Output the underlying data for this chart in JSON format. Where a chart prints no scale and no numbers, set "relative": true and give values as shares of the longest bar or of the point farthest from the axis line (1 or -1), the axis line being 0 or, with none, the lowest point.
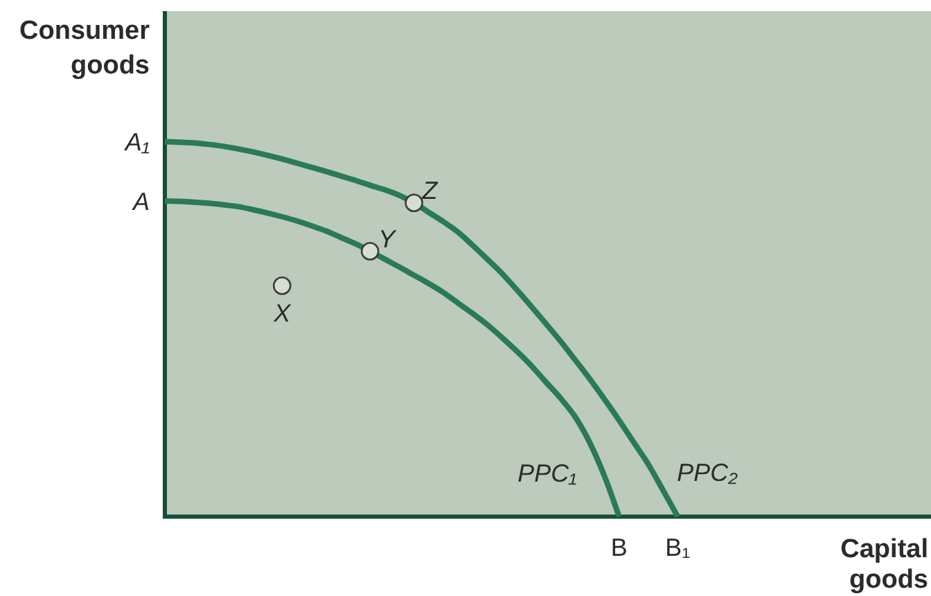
{
  "chart_data": {
    "type": "line",
    "relative": true,
    "xlabel": "Capital goods",
    "ylabel": "Consumer goods",
    "categories": [
      null,
      null,
      null,
      null,
      null,
      null,
      null,
      null,
      null,
      null,
      null,
      null,
      null,
      null,
      null,
      null,
      null,
      null,
      null,
      null,
      null,
      null,
      null,
      null,
      null,
      null,
      null,
      null,
      null,
      null,
      null,
      "B",
      null,
      null,
      null,
      "B₁",
      null,
      null,
      null,
      null,
      null,
      null,
      null,
      null,
      null,
      null,
      null,
      null,
      null,
      null,
      null,
      null,
      null
    ],
    "annotations": [
      "A",
      "A₁"
    ],
    "series": [
      {
        "name": "PPC₁",
        "color": "#2a7a56",
        "values": [
          0.842,
          0.841,
          0.839,
          0.836,
          0.832,
          0.827,
          0.819,
          0.81,
          0.8,
          0.789,
          0.776,
          0.762,
          0.745,
          0.728,
          0.708,
          0.687,
          0.666,
          0.644,
          0.622,
          0.598,
          0.57,
          0.542,
          0.512,
          0.478,
          0.442,
          0.403,
          0.359,
          0.316,
          0.266,
          0.197,
          0.108,
          0,
          null,
          null,
          null,
          null,
          null,
          null,
          null,
          null,
          null,
          null,
          null,
          null,
          null,
          null,
          null,
          null,
          null,
          null,
          null,
          null,
          null
        ]
      },
      {
        "name": "PPC₂",
        "color": "#2a7a56",
        "values": [
          1,
          0.999,
          0.997,
          0.993,
          0.988,
          0.981,
          0.973,
          0.964,
          0.954,
          0.943,
          0.932,
          0.921,
          0.909,
          0.897,
          0.884,
          0.872,
          0.857,
          0.837,
          0.812,
          0.787,
          0.759,
          0.724,
          0.687,
          0.649,
          0.606,
          0.561,
          0.515,
          0.468,
          0.418,
          0.367,
          0.313,
          0.257,
          0.198,
          0.139,
          0.07,
          0,
          null,
          null,
          null,
          null,
          null,
          null,
          null,
          null,
          null,
          null,
          null,
          null,
          null,
          null,
          null,
          null,
          null
        ]
      },
      {
        "type": "scatter",
        "name": "X",
        "color": "#d4ded4",
        "marker": "circle",
        "values": [
          null,
          null,
          null,
          null,
          null,
          null,
          null,
          null,
          0.616,
          null,
          null,
          null,
          null,
          null,
          null,
          null,
          null,
          null,
          null,
          null,
          null,
          null,
          null,
          null,
          null,
          null,
          null,
          null,
          null,
          null,
          null,
          null,
          null,
          null,
          null,
          null,
          null,
          null,
          null,
          null,
          null,
          null,
          null,
          null,
          null,
          null,
          null,
          null,
          null,
          null,
          null,
          null,
          null
        ]
      },
      {
        "type": "scatter",
        "name": "Y",
        "color": "#d4ded4",
        "marker": "circle",
        "values": [
          null,
          null,
          null,
          null,
          null,
          null,
          null,
          null,
          null,
          null,
          null,
          null,
          null,
          null,
          0.708,
          null,
          null,
          null,
          null,
          null,
          null,
          null,
          null,
          null,
          null,
          null,
          null,
          null,
          null,
          null,
          null,
          null,
          null,
          null,
          null,
          null,
          null,
          null,
          null,
          null,
          null,
          null,
          null,
          null,
          null,
          null,
          null,
          null,
          null,
          null,
          null,
          null,
          null
        ]
      },
      {
        "type": "scatter",
        "name": "Z",
        "color": "#d4ded4",
        "marker": "circle",
        "values": [
          null,
          null,
          null,
          null,
          null,
          null,
          null,
          null,
          null,
          null,
          null,
          null,
          null,
          null,
          null,
          null,
          null,
          0.837,
          null,
          null,
          null,
          null,
          null,
          null,
          null,
          null,
          null,
          null,
          null,
          null,
          null,
          null,
          null,
          null,
          null,
          null,
          null,
          null,
          null,
          null,
          null,
          null,
          null,
          null,
          null,
          null,
          null,
          null,
          null,
          null,
          null,
          null,
          null
        ]
      }
    ]
  }
}
